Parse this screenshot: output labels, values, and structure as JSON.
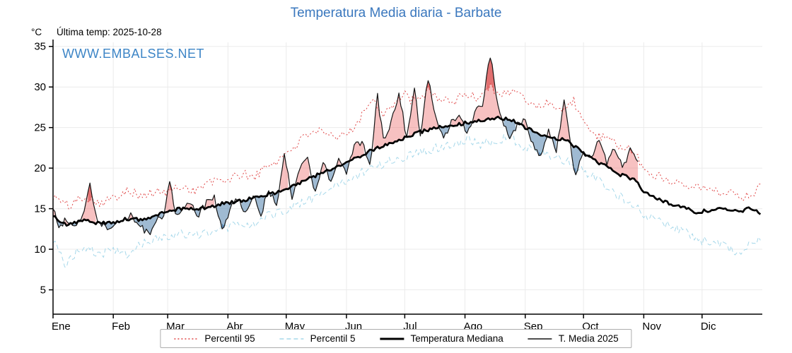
{
  "title": "Temperatura Media diaria - Barbate",
  "header": {
    "y_axis_unit": "°C",
    "last_temp_label": "Última temp: 2025-10-28",
    "watermark": "WWW.EMBALSES.NET"
  },
  "legend": {
    "items": [
      "Percentil 95",
      "Percentil 5",
      "Temperatura Mediana",
      "T. Media 2025"
    ]
  },
  "colors": {
    "title_blue": "#3b78be",
    "watermark_blue": "#3d85c6",
    "grid": "#ebebeb",
    "axis": "#000000"
  },
  "chart_data": {
    "type": "line",
    "title": "Temperatura Media diaria - Barbate",
    "ylabel": "°C",
    "ylim": [
      2,
      35.5
    ],
    "yticks": [
      5,
      10,
      15,
      20,
      25,
      30,
      35
    ],
    "grid": true,
    "legend_position": "bottom",
    "x_months": [
      "Ene",
      "Feb",
      "Mar",
      "Abr",
      "May",
      "Jun",
      "Jul",
      "Ago",
      "Sep",
      "Oct",
      "Nov",
      "Dic"
    ],
    "month_start_days": [
      0,
      31,
      59,
      90,
      120,
      151,
      181,
      212,
      243,
      273,
      304,
      334
    ],
    "days_in_year": 365,
    "last_data_date": "2025-10-28",
    "fills": {
      "above_color": "rgba(235,100,100,0.40)",
      "below_color": "rgba(95,140,180,0.60)",
      "above_p95_color": "rgba(210,45,45,0.55)",
      "below_p5_color": "rgba(55,105,160,0.65)"
    },
    "series": [
      {
        "name": "Percentil 95",
        "color": "#e04545",
        "dash": "dotted",
        "width": 1,
        "noise": 0.6,
        "points": [
          [
            0,
            16.5
          ],
          [
            8,
            15.3
          ],
          [
            16,
            16.6
          ],
          [
            24,
            15.8
          ],
          [
            31,
            16.2
          ],
          [
            38,
            17.5
          ],
          [
            45,
            16.5
          ],
          [
            52,
            17
          ],
          [
            59,
            17
          ],
          [
            66,
            17.8
          ],
          [
            73,
            17.2
          ],
          [
            80,
            18.2
          ],
          [
            90,
            18.6
          ],
          [
            97,
            19.2
          ],
          [
            104,
            19
          ],
          [
            110,
            20.2
          ],
          [
            116,
            21
          ],
          [
            122,
            22.3
          ],
          [
            128,
            23.5
          ],
          [
            134,
            24.8
          ],
          [
            140,
            24
          ],
          [
            146,
            23.6
          ],
          [
            152,
            24.4
          ],
          [
            158,
            26.2
          ],
          [
            164,
            28.6
          ],
          [
            170,
            26.8
          ],
          [
            176,
            28
          ],
          [
            181,
            29
          ],
          [
            187,
            28
          ],
          [
            193,
            29.6
          ],
          [
            199,
            28.6
          ],
          [
            205,
            28
          ],
          [
            212,
            29.2
          ],
          [
            218,
            28.6
          ],
          [
            225,
            30.2
          ],
          [
            231,
            29
          ],
          [
            237,
            29.6
          ],
          [
            243,
            28.4
          ],
          [
            250,
            27.6
          ],
          [
            256,
            28.2
          ],
          [
            262,
            27
          ],
          [
            268,
            28.4
          ],
          [
            273,
            25.4
          ],
          [
            280,
            24
          ],
          [
            287,
            23.2
          ],
          [
            294,
            22.6
          ],
          [
            300,
            21.6
          ],
          [
            304,
            19.8
          ],
          [
            311,
            19
          ],
          [
            318,
            18.4
          ],
          [
            325,
            18.2
          ],
          [
            334,
            17.6
          ],
          [
            341,
            17
          ],
          [
            348,
            17.2
          ],
          [
            355,
            16.4
          ],
          [
            360,
            17
          ],
          [
            364,
            17.6
          ]
        ]
      },
      {
        "name": "Percentil 5",
        "color": "#a6d8ea",
        "dash": "dashed",
        "width": 1,
        "noise": 0.6,
        "points": [
          [
            0,
            11.2
          ],
          [
            6,
            8
          ],
          [
            12,
            9.6
          ],
          [
            18,
            10.4
          ],
          [
            24,
            9.2
          ],
          [
            31,
            10
          ],
          [
            38,
            9.2
          ],
          [
            45,
            10.6
          ],
          [
            52,
            11.2
          ],
          [
            59,
            11.6
          ],
          [
            66,
            12
          ],
          [
            73,
            11.6
          ],
          [
            80,
            12.2
          ],
          [
            87,
            12.6
          ],
          [
            94,
            13
          ],
          [
            101,
            12.8
          ],
          [
            108,
            13.8
          ],
          [
            115,
            14.4
          ],
          [
            122,
            15.2
          ],
          [
            129,
            15.8
          ],
          [
            136,
            16.6
          ],
          [
            143,
            17.4
          ],
          [
            150,
            18.4
          ],
          [
            157,
            19.2
          ],
          [
            164,
            20
          ],
          [
            171,
            20.6
          ],
          [
            178,
            21.2
          ],
          [
            185,
            21.8
          ],
          [
            192,
            22.2
          ],
          [
            199,
            22.6
          ],
          [
            206,
            23
          ],
          [
            213,
            23.6
          ],
          [
            220,
            23
          ],
          [
            227,
            23.4
          ],
          [
            234,
            23.8
          ],
          [
            241,
            22.8
          ],
          [
            248,
            22.2
          ],
          [
            255,
            21.8
          ],
          [
            262,
            21
          ],
          [
            269,
            20.4
          ],
          [
            276,
            19.2
          ],
          [
            283,
            18
          ],
          [
            290,
            16.8
          ],
          [
            297,
            15.8
          ],
          [
            304,
            14.4
          ],
          [
            311,
            13.4
          ],
          [
            318,
            12.8
          ],
          [
            325,
            12.4
          ],
          [
            331,
            11.2
          ],
          [
            338,
            10.8
          ],
          [
            345,
            10.4
          ],
          [
            352,
            9.6
          ],
          [
            358,
            10.6
          ],
          [
            364,
            11
          ]
        ]
      },
      {
        "name": "Temperatura Mediana",
        "color": "#000000",
        "dash": "solid",
        "width": 2.7,
        "noise": 0.22,
        "points": [
          [
            0,
            14
          ],
          [
            8,
            13
          ],
          [
            16,
            13.6
          ],
          [
            24,
            13.2
          ],
          [
            31,
            13.3
          ],
          [
            38,
            13.8
          ],
          [
            45,
            13.6
          ],
          [
            52,
            14
          ],
          [
            59,
            14.8
          ],
          [
            66,
            15
          ],
          [
            73,
            15
          ],
          [
            80,
            15.2
          ],
          [
            87,
            15.6
          ],
          [
            94,
            15.8
          ],
          [
            101,
            16.2
          ],
          [
            108,
            16.6
          ],
          [
            115,
            17
          ],
          [
            122,
            17.6
          ],
          [
            129,
            18.4
          ],
          [
            136,
            19.2
          ],
          [
            143,
            19.8
          ],
          [
            150,
            20.6
          ],
          [
            157,
            21.4
          ],
          [
            164,
            22.2
          ],
          [
            171,
            22.8
          ],
          [
            178,
            23.4
          ],
          [
            181,
            23.8
          ],
          [
            188,
            24.4
          ],
          [
            195,
            24.8
          ],
          [
            202,
            25.2
          ],
          [
            209,
            25.4
          ],
          [
            216,
            25.8
          ],
          [
            223,
            26
          ],
          [
            230,
            26.2
          ],
          [
            237,
            25.8
          ],
          [
            243,
            25
          ],
          [
            250,
            24.2
          ],
          [
            257,
            23.8
          ],
          [
            264,
            23.4
          ],
          [
            271,
            22.2
          ],
          [
            278,
            21
          ],
          [
            285,
            20.2
          ],
          [
            292,
            19.2
          ],
          [
            299,
            18.6
          ],
          [
            304,
            17.2
          ],
          [
            311,
            16.2
          ],
          [
            318,
            15.6
          ],
          [
            325,
            15.2
          ],
          [
            331,
            14.6
          ],
          [
            338,
            14.8
          ],
          [
            345,
            15.2
          ],
          [
            352,
            14.6
          ],
          [
            358,
            15
          ],
          [
            364,
            14.4
          ]
        ]
      },
      {
        "name": "T. Media 2025",
        "color": "#151515",
        "dash": "solid",
        "width": 1.2,
        "noise": 0.45,
        "end_day": 301,
        "points": [
          [
            0,
            15
          ],
          [
            3,
            12.6
          ],
          [
            7,
            13.8
          ],
          [
            11,
            13
          ],
          [
            15,
            14
          ],
          [
            19,
            18
          ],
          [
            22,
            14
          ],
          [
            26,
            13
          ],
          [
            31,
            12.6
          ],
          [
            35,
            13.4
          ],
          [
            40,
            14.2
          ],
          [
            45,
            12.8
          ],
          [
            49,
            11.8
          ],
          [
            53,
            13.4
          ],
          [
            57,
            14.2
          ],
          [
            60,
            18.4
          ],
          [
            63,
            14.6
          ],
          [
            67,
            15
          ],
          [
            71,
            15.6
          ],
          [
            75,
            14.2
          ],
          [
            79,
            15.8
          ],
          [
            83,
            16.4
          ],
          [
            87,
            12.2
          ],
          [
            91,
            15
          ],
          [
            95,
            16.2
          ],
          [
            99,
            14.6
          ],
          [
            103,
            16.8
          ],
          [
            107,
            14.2
          ],
          [
            111,
            17.4
          ],
          [
            115,
            15.2
          ],
          [
            119,
            21.8
          ],
          [
            123,
            16.4
          ],
          [
            127,
            19.8
          ],
          [
            131,
            21
          ],
          [
            135,
            17
          ],
          [
            139,
            20.6
          ],
          [
            143,
            18.2
          ],
          [
            147,
            21.2
          ],
          [
            151,
            19.4
          ],
          [
            155,
            22.6
          ],
          [
            159,
            23.4
          ],
          [
            163,
            20.2
          ],
          [
            167,
            28.8
          ],
          [
            170,
            23.4
          ],
          [
            174,
            25.6
          ],
          [
            178,
            29.4
          ],
          [
            182,
            23.6
          ],
          [
            186,
            29.8
          ],
          [
            189,
            24.2
          ],
          [
            193,
            31
          ],
          [
            197,
            26
          ],
          [
            201,
            23.6
          ],
          [
            205,
            25.8
          ],
          [
            209,
            26.6
          ],
          [
            213,
            24.4
          ],
          [
            217,
            26.8
          ],
          [
            221,
            27.8
          ],
          [
            225,
            34
          ],
          [
            228,
            29
          ],
          [
            231,
            26.2
          ],
          [
            235,
            23.2
          ],
          [
            239,
            25.4
          ],
          [
            243,
            26
          ],
          [
            247,
            23
          ],
          [
            251,
            21.2
          ],
          [
            255,
            24.6
          ],
          [
            259,
            22
          ],
          [
            263,
            28.4
          ],
          [
            266,
            23.2
          ],
          [
            269,
            18.8
          ],
          [
            273,
            22.4
          ],
          [
            277,
            21
          ],
          [
            281,
            23.8
          ],
          [
            285,
            20.4
          ],
          [
            289,
            22.6
          ],
          [
            293,
            20
          ],
          [
            297,
            22.2
          ],
          [
            301,
            20.6
          ]
        ]
      }
    ]
  }
}
